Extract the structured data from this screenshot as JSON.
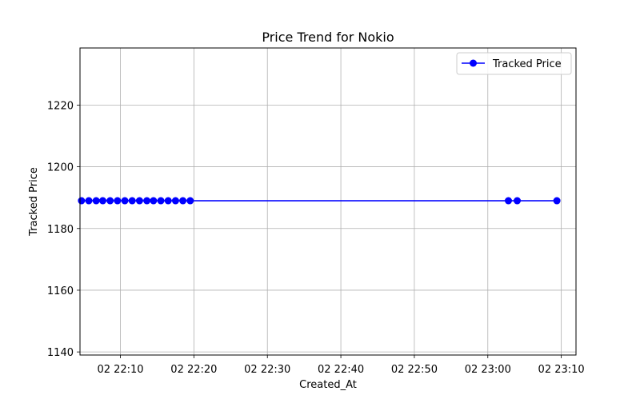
{
  "chart_data": {
    "type": "line",
    "title": "Price Trend for Nokio",
    "xlabel": "Created_At",
    "ylabel": "Tracked Price",
    "x_unit": "minutes",
    "x_ticks": [
      {
        "value": 1330,
        "label": "02 22:10"
      },
      {
        "value": 1340,
        "label": "02 22:20"
      },
      {
        "value": 1350,
        "label": "02 22:30"
      },
      {
        "value": 1360,
        "label": "02 22:40"
      },
      {
        "value": 1370,
        "label": "02 22:50"
      },
      {
        "value": 1380,
        "label": "02 23:00"
      },
      {
        "value": 1390,
        "label": "02 23:10"
      }
    ],
    "y_ticks": [
      1140,
      1160,
      1180,
      1200,
      1220
    ],
    "xlim": [
      1324.5,
      1392
    ],
    "ylim": [
      1139,
      1238.5
    ],
    "grid": true,
    "legend_position": "top-right",
    "series": [
      {
        "name": "Tracked Price",
        "color": "#0000ff",
        "marker": "circle",
        "x": [
          1324.7,
          1325.7,
          1326.7,
          1327.6,
          1328.6,
          1329.6,
          1330.6,
          1331.6,
          1332.6,
          1333.6,
          1334.5,
          1335.5,
          1336.5,
          1337.5,
          1338.5,
          1339.5,
          1382.8,
          1384.0,
          1389.4
        ],
        "y": [
          1189,
          1189,
          1189,
          1189,
          1189,
          1189,
          1189,
          1189,
          1189,
          1189,
          1189,
          1189,
          1189,
          1189,
          1189,
          1189,
          1189,
          1189,
          1189
        ]
      }
    ]
  }
}
